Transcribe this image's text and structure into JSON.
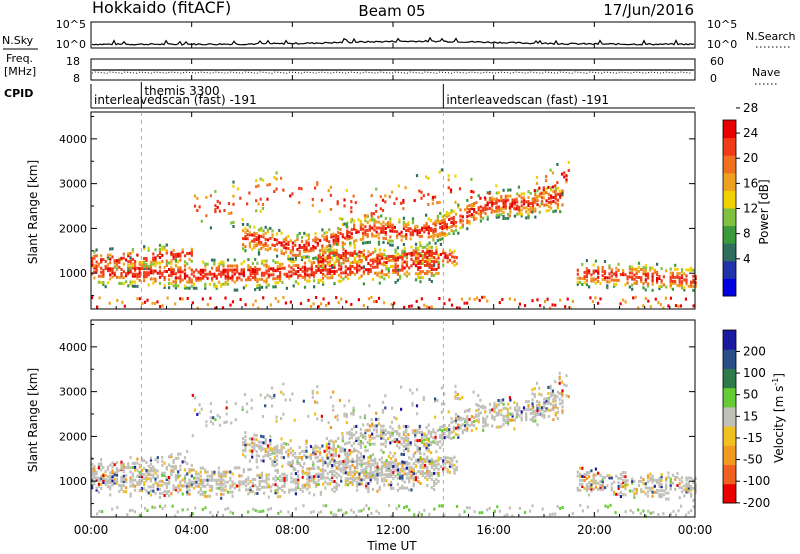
{
  "header": {
    "site": "Hokkaido (fitACF)",
    "beam": "Beam 05",
    "date": "17/Jun/2016"
  },
  "chart_data": [
    {
      "type": "line",
      "panel": "noise",
      "left_label": "N.Sky",
      "left_ticks": [
        "10^5",
        "10^0"
      ],
      "right_label": "N.Search",
      "right_ticks": [
        "10^5",
        "10^0"
      ],
      "note": ""
    },
    {
      "type": "line",
      "panel": "frequency",
      "left_label": [
        "Freq.",
        "[MHz]"
      ],
      "left_ticks": [
        "18",
        "8"
      ],
      "right_label": "Nave",
      "right_ticks": [
        "60",
        "0"
      ]
    },
    {
      "type": "table",
      "panel": "cpid",
      "label": "CPID",
      "segments": [
        {
          "start": "00:00",
          "text": "interleavedscan (fast) -191"
        },
        {
          "start": "02:00",
          "text": "themis 3300"
        },
        {
          "start": "14:00",
          "text": "interleavedscan (fast) -191"
        }
      ]
    },
    {
      "type": "heatmap",
      "panel": "power",
      "ylabel": "Slant Range [km]",
      "yticks": [
        1000,
        2000,
        3000,
        4000
      ],
      "ylim": [
        200,
        4600
      ],
      "colorbar_label": "Power [dB]",
      "colorbar_ticks": [
        4,
        8,
        12,
        16,
        20,
        24,
        28
      ],
      "colorbar_colors": [
        "#0000e0",
        "#2233aa",
        "#2e6e5e",
        "#3a9a3a",
        "#80c040",
        "#f0d000",
        "#f0a020",
        "#f07020",
        "#f03a18",
        "#e80000"
      ]
    },
    {
      "type": "heatmap",
      "panel": "velocity",
      "ylabel": "Slant Range [km]",
      "yticks": [
        1000,
        2000,
        3000,
        4000
      ],
      "ylim": [
        200,
        4600
      ],
      "colorbar_label": "Velocity [m s^-1]",
      "colorbar_ticks": [
        200,
        100,
        50,
        15,
        -15,
        -50,
        -100,
        -200
      ],
      "colorbar_colors": [
        "#1a1aa0",
        "#2a4e8a",
        "#2e7a4a",
        "#66cc33",
        "#c0c0b8",
        "#f0c020",
        "#f09a20",
        "#f06020",
        "#e80000"
      ]
    }
  ],
  "xaxis": {
    "label": "Time UT",
    "ticks": [
      "00:00",
      "04:00",
      "08:00",
      "12:00",
      "16:00",
      "20:00",
      "00:00"
    ]
  }
}
